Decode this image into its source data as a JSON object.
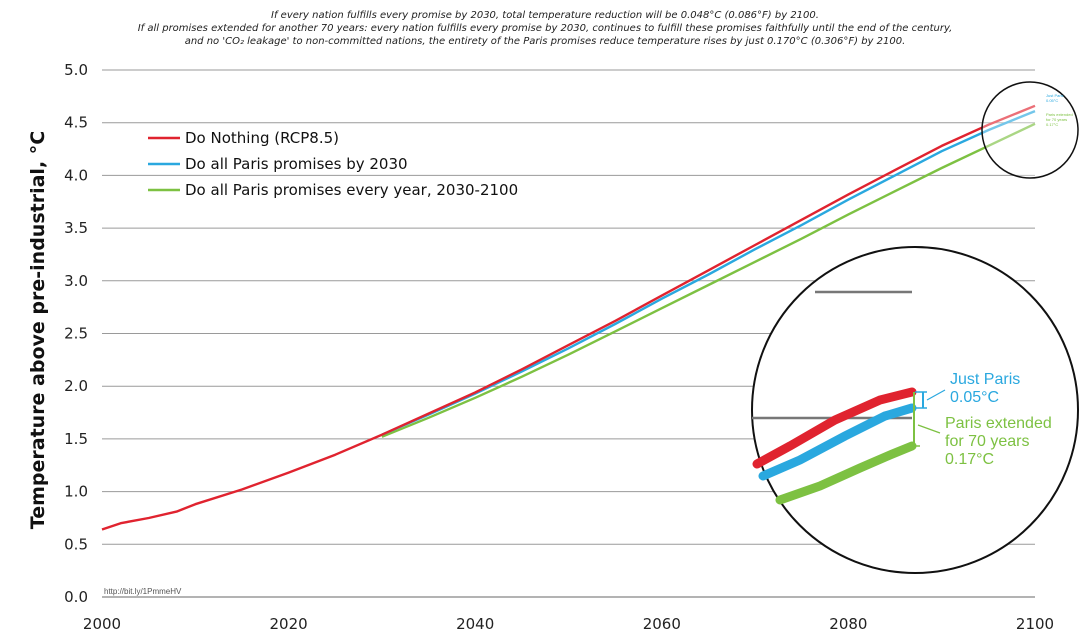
{
  "subtitles": [
    "If every nation fulfills every promise by 2030, total temperature reduction will be 0.048°C (0.086°F) by 2100.",
    "If all promises extended for another 70 years: every nation fulfills every promise by 2030, continues to fulfill these promises faithfully until the end of the century,",
    "and no 'CO₂ leakage' to non-committed nations, the entirety of the Paris promises reduce temperature rises by just 0.170°C (0.306°F) by 2100."
  ],
  "colors": {
    "red": "#e0232f",
    "blue": "#2aa8df",
    "green": "#7dc142",
    "grid": "#9a9a9a"
  },
  "zoom_labels": {
    "just_paris": "Just Paris",
    "just_paris_value": "0.05°C",
    "paris_extended": "Paris extended",
    "for_70_years": "for 70 years",
    "paris_extended_value": "0.17°C"
  },
  "tiny_labels": [
    "Just Paris",
    "0.05°C",
    "Paris extended",
    "for 70 years",
    "0.17°C"
  ],
  "source_text": "http://bit.ly/1PmmeHV",
  "chart_data": {
    "type": "line",
    "ylabel": "Temperature above pre-industrial, °C",
    "xlabel": "",
    "xlim": [
      2000,
      2100
    ],
    "ylim": [
      0,
      5
    ],
    "x_ticks": [
      "2000",
      "2020",
      "2040",
      "2060",
      "2080",
      "2100"
    ],
    "y_ticks": [
      "0.0",
      "0.5",
      "1.0",
      "1.5",
      "2.0",
      "2.5",
      "3.0",
      "3.5",
      "4.0",
      "4.5",
      "5.0"
    ],
    "grid": "horizontal",
    "legend_position": "top-left",
    "series": [
      {
        "name": "Do Nothing (RCP8.5)",
        "color_key": "red",
        "x": [
          2000,
          2002,
          2005,
          2008,
          2010,
          2015,
          2020,
          2025,
          2030,
          2035,
          2040,
          2045,
          2050,
          2055,
          2060,
          2065,
          2070,
          2075,
          2080,
          2085,
          2090,
          2095,
          2100
        ],
        "y": [
          0.64,
          0.7,
          0.75,
          0.81,
          0.88,
          1.02,
          1.18,
          1.35,
          1.54,
          1.74,
          1.94,
          2.16,
          2.39,
          2.62,
          2.86,
          3.1,
          3.34,
          3.58,
          3.82,
          4.05,
          4.28,
          4.48,
          4.66
        ]
      },
      {
        "name": "Do all Paris promises by 2030",
        "color_key": "blue",
        "x": [
          2030,
          2035,
          2040,
          2045,
          2050,
          2055,
          2060,
          2065,
          2070,
          2075,
          2080,
          2085,
          2090,
          2095,
          2100
        ],
        "y": [
          1.54,
          1.73,
          1.93,
          2.14,
          2.36,
          2.59,
          2.83,
          3.06,
          3.3,
          3.53,
          3.77,
          4.0,
          4.23,
          4.43,
          4.61
        ]
      },
      {
        "name": "Do all Paris promises every year, 2030-2100",
        "color_key": "green",
        "x": [
          2030,
          2035,
          2040,
          2045,
          2050,
          2055,
          2060,
          2065,
          2070,
          2075,
          2080,
          2085,
          2090,
          2095,
          2100
        ],
        "y": [
          1.52,
          1.7,
          1.89,
          2.09,
          2.3,
          2.52,
          2.74,
          2.96,
          3.18,
          3.4,
          3.63,
          3.85,
          4.07,
          4.28,
          4.49
        ]
      }
    ]
  }
}
